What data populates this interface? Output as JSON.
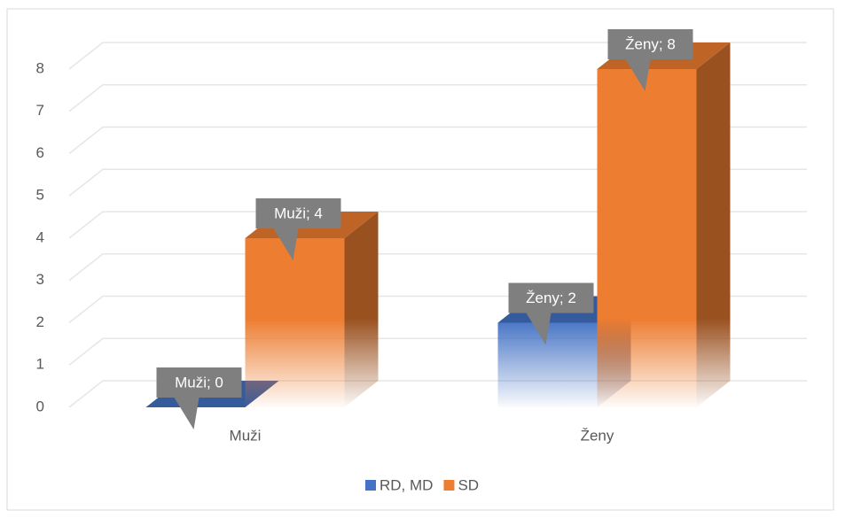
{
  "chart_data": {
    "type": "bar3d",
    "categories": [
      "Muži",
      "Ženy"
    ],
    "series": [
      {
        "name": "RD, MD",
        "color": "#4472c4",
        "values": [
          0,
          2
        ],
        "value_labels": [
          "Muži; 0",
          "Ženy; 2"
        ]
      },
      {
        "name": "SD",
        "color": "#ed7d31",
        "values": [
          4,
          8
        ],
        "value_labels": [
          "Muži; 4",
          "Ženy; 8"
        ]
      }
    ],
    "ylim": [
      0,
      8
    ],
    "yticks": [
      0,
      1,
      2,
      3,
      4,
      5,
      6,
      7,
      8
    ],
    "grid": true,
    "legend": "bottom"
  }
}
